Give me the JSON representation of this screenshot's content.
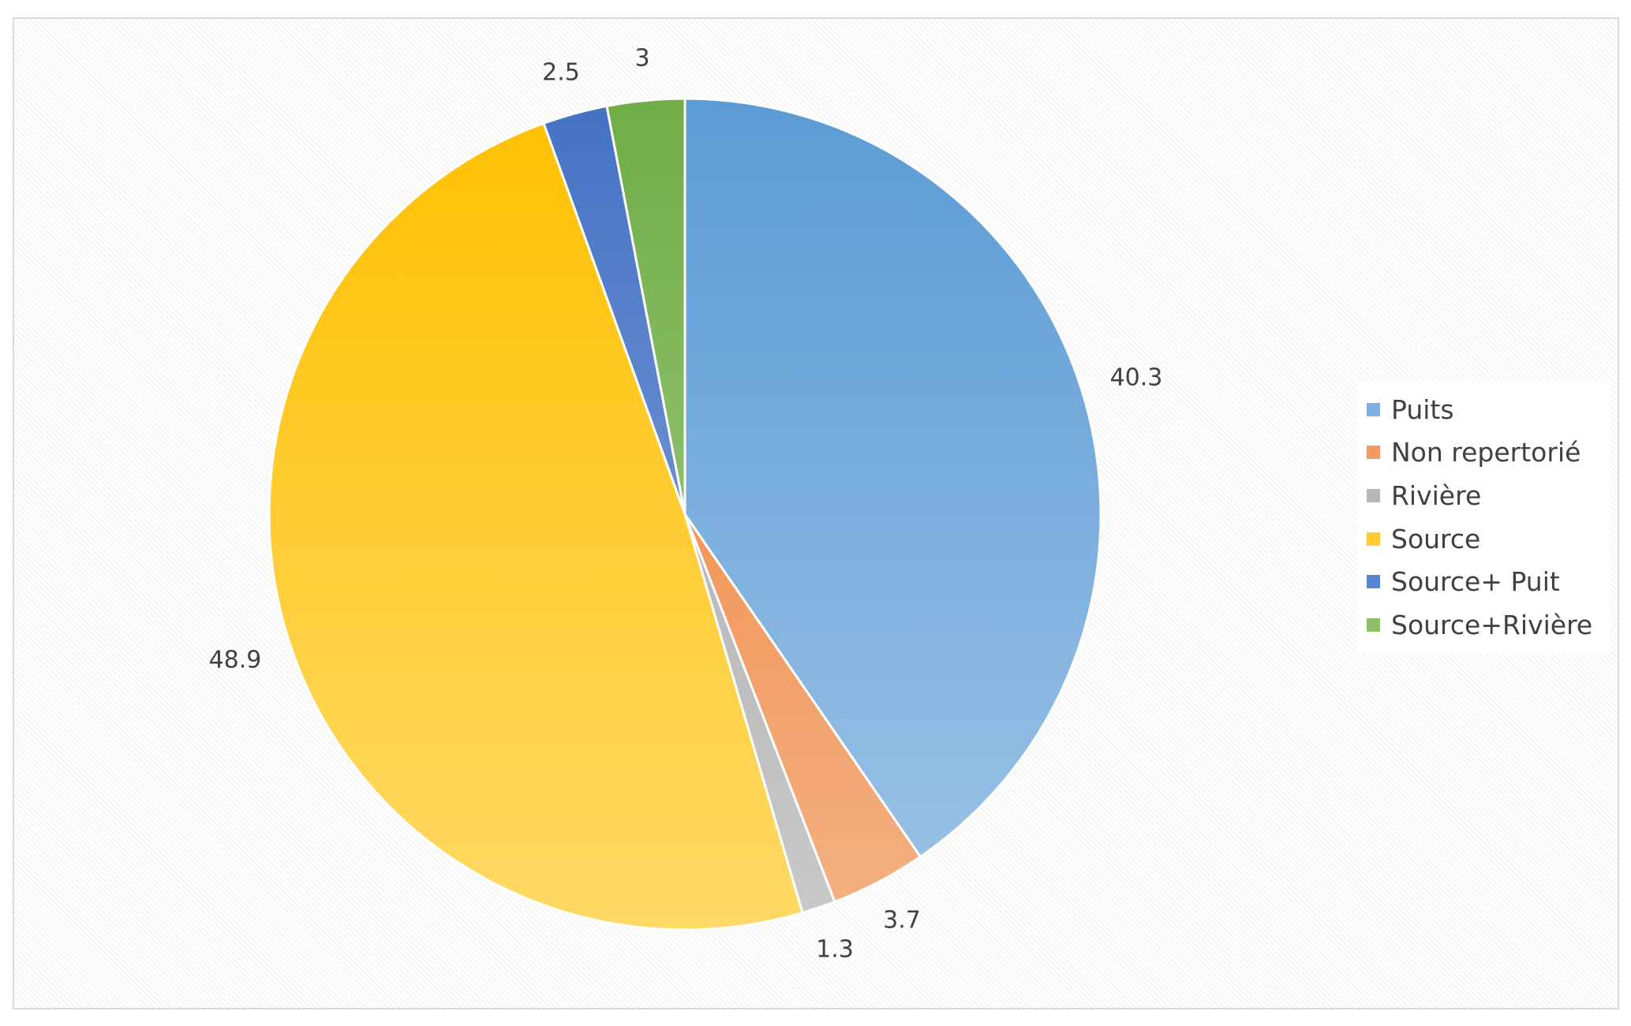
{
  "chart_data": {
    "type": "pie",
    "title": "",
    "categories": [
      "Puits",
      "Non repertorié",
      "Rivière",
      "Source",
      "Source+ Puit",
      "Source+Rivière"
    ],
    "values": [
      40.3,
      3.7,
      1.3,
      48.9,
      2.5,
      3
    ],
    "data_labels": [
      "40.3",
      "3.7",
      "1.3",
      "48.9",
      "2.5",
      "3"
    ],
    "start_angle_deg": 0,
    "direction": "clockwise",
    "legend_position": "right",
    "colors": {
      "Puits": [
        "#5b9bd5",
        "#9dc3e6"
      ],
      "Non repertorié": [
        "#ed7d31",
        "#f4b183"
      ],
      "Rivière": [
        "#a5a5a5",
        "#c9c9c9"
      ],
      "Source": [
        "#ffc000",
        "#ffd966"
      ],
      "Source+ Puit": [
        "#4472c4",
        "#8faadc"
      ],
      "Source+Rivière": [
        "#70ad47",
        "#a9d18e"
      ]
    }
  },
  "legend": {
    "items": [
      {
        "label": "Puits",
        "color": "#7fb0e0"
      },
      {
        "label": "Non repertorié",
        "color": "#f29a63"
      },
      {
        "label": "Rivière",
        "color": "#b7b7b7"
      },
      {
        "label": "Source",
        "color": "#ffcc33"
      },
      {
        "label": "Source+ Puit",
        "color": "#5a86d0"
      },
      {
        "label": "Source+Rivière",
        "color": "#8cc06a"
      }
    ]
  }
}
